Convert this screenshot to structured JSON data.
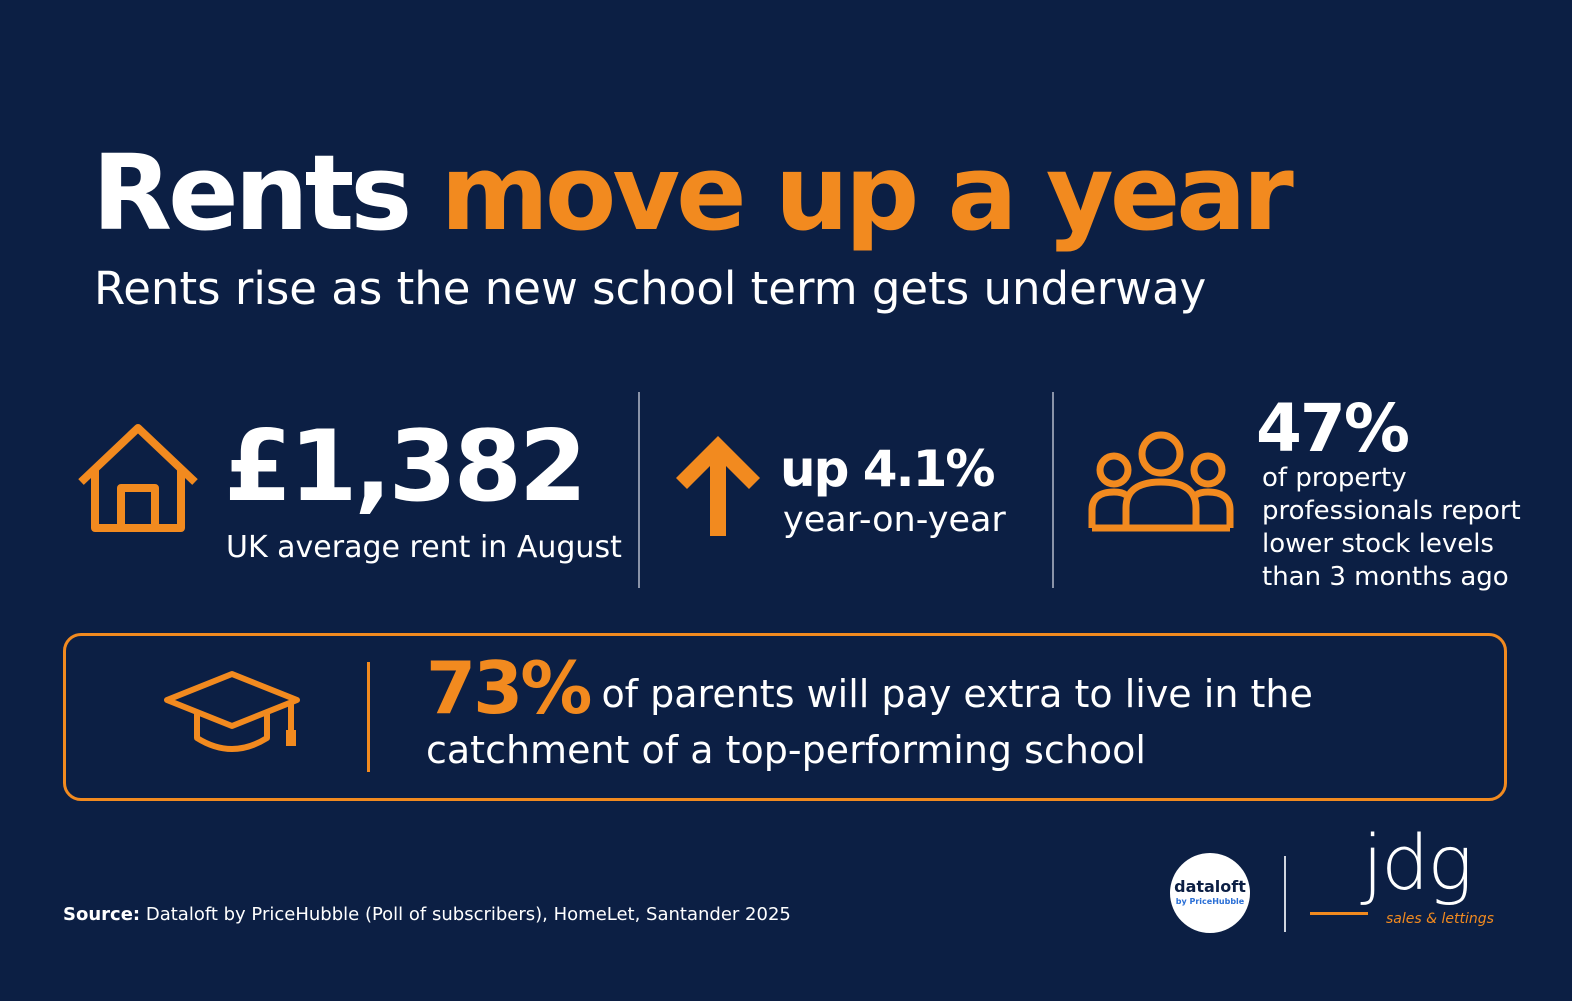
{
  "header": {
    "title_lead": "Rents",
    "title_highlight": "move up a year",
    "subtitle": "Rents rise as the new school term gets underway"
  },
  "stats": [
    {
      "value": "£1,382",
      "label": "UK average rent in August"
    },
    {
      "value": "up 4.1%",
      "label": "year-on-year"
    },
    {
      "value": "47%",
      "label": "of property professionals report lower stock levels than 3 months ago"
    }
  ],
  "banner": {
    "value": "73%",
    "text": "of parents will pay extra to live in the catchment of a top-performing school"
  },
  "footer": {
    "source_label": "Source:",
    "source_text": "Dataloft by PriceHubble (Poll of subscribers), HomeLet, Santander 2025",
    "logo_dataloft": "dataloft",
    "logo_dataloft_sub": "by PriceHubble",
    "logo_jdg": "jdg",
    "logo_jdg_sub": "sales & lettings"
  }
}
